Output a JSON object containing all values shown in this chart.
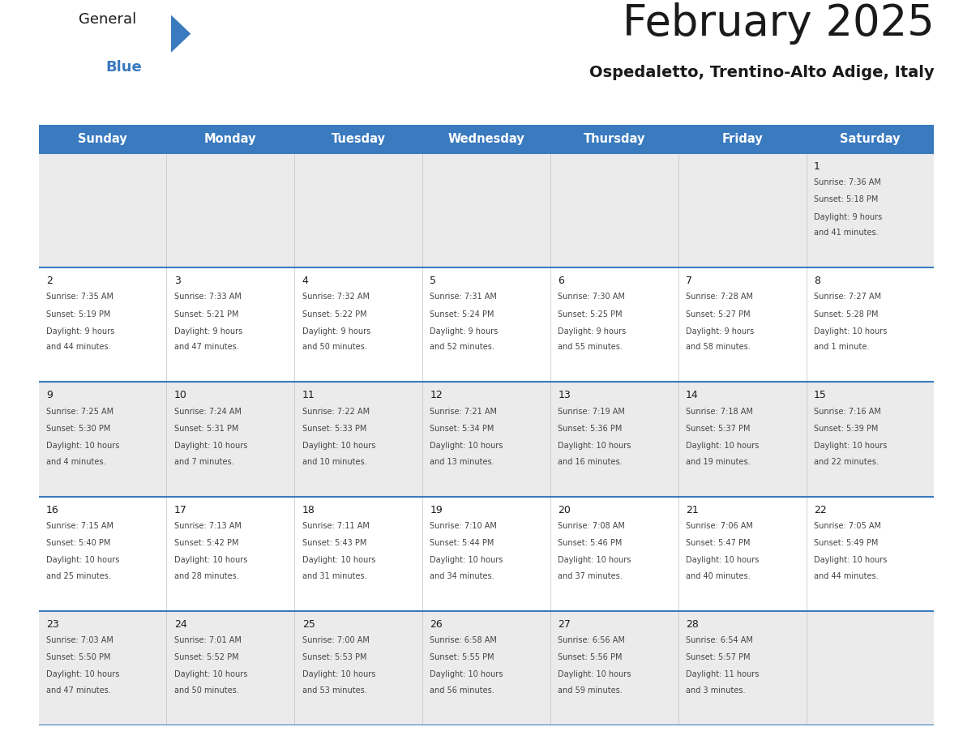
{
  "title": "February 2025",
  "subtitle": "Ospedaletto, Trentino-Alto Adige, Italy",
  "header_color": "#3a7abf",
  "header_text_color": "#ffffff",
  "row_bg_even": "#ebebeb",
  "row_bg_odd": "#ffffff",
  "day_headers": [
    "Sunday",
    "Monday",
    "Tuesday",
    "Wednesday",
    "Thursday",
    "Friday",
    "Saturday"
  ],
  "title_color": "#1a1a1a",
  "subtitle_color": "#1a1a1a",
  "number_color": "#1a1a1a",
  "text_color": "#444444",
  "line_color": "#3a7abf",
  "days": [
    {
      "day": 1,
      "col": 6,
      "row": 0,
      "sunrise": "7:36 AM",
      "sunset": "5:18 PM",
      "daylight_hours": 9,
      "daylight_minutes": 41
    },
    {
      "day": 2,
      "col": 0,
      "row": 1,
      "sunrise": "7:35 AM",
      "sunset": "5:19 PM",
      "daylight_hours": 9,
      "daylight_minutes": 44
    },
    {
      "day": 3,
      "col": 1,
      "row": 1,
      "sunrise": "7:33 AM",
      "sunset": "5:21 PM",
      "daylight_hours": 9,
      "daylight_minutes": 47
    },
    {
      "day": 4,
      "col": 2,
      "row": 1,
      "sunrise": "7:32 AM",
      "sunset": "5:22 PM",
      "daylight_hours": 9,
      "daylight_minutes": 50
    },
    {
      "day": 5,
      "col": 3,
      "row": 1,
      "sunrise": "7:31 AM",
      "sunset": "5:24 PM",
      "daylight_hours": 9,
      "daylight_minutes": 52
    },
    {
      "day": 6,
      "col": 4,
      "row": 1,
      "sunrise": "7:30 AM",
      "sunset": "5:25 PM",
      "daylight_hours": 9,
      "daylight_minutes": 55
    },
    {
      "day": 7,
      "col": 5,
      "row": 1,
      "sunrise": "7:28 AM",
      "sunset": "5:27 PM",
      "daylight_hours": 9,
      "daylight_minutes": 58
    },
    {
      "day": 8,
      "col": 6,
      "row": 1,
      "sunrise": "7:27 AM",
      "sunset": "5:28 PM",
      "daylight_hours": 10,
      "daylight_minutes": 1
    },
    {
      "day": 9,
      "col": 0,
      "row": 2,
      "sunrise": "7:25 AM",
      "sunset": "5:30 PM",
      "daylight_hours": 10,
      "daylight_minutes": 4
    },
    {
      "day": 10,
      "col": 1,
      "row": 2,
      "sunrise": "7:24 AM",
      "sunset": "5:31 PM",
      "daylight_hours": 10,
      "daylight_minutes": 7
    },
    {
      "day": 11,
      "col": 2,
      "row": 2,
      "sunrise": "7:22 AM",
      "sunset": "5:33 PM",
      "daylight_hours": 10,
      "daylight_minutes": 10
    },
    {
      "day": 12,
      "col": 3,
      "row": 2,
      "sunrise": "7:21 AM",
      "sunset": "5:34 PM",
      "daylight_hours": 10,
      "daylight_minutes": 13
    },
    {
      "day": 13,
      "col": 4,
      "row": 2,
      "sunrise": "7:19 AM",
      "sunset": "5:36 PM",
      "daylight_hours": 10,
      "daylight_minutes": 16
    },
    {
      "day": 14,
      "col": 5,
      "row": 2,
      "sunrise": "7:18 AM",
      "sunset": "5:37 PM",
      "daylight_hours": 10,
      "daylight_minutes": 19
    },
    {
      "day": 15,
      "col": 6,
      "row": 2,
      "sunrise": "7:16 AM",
      "sunset": "5:39 PM",
      "daylight_hours": 10,
      "daylight_minutes": 22
    },
    {
      "day": 16,
      "col": 0,
      "row": 3,
      "sunrise": "7:15 AM",
      "sunset": "5:40 PM",
      "daylight_hours": 10,
      "daylight_minutes": 25
    },
    {
      "day": 17,
      "col": 1,
      "row": 3,
      "sunrise": "7:13 AM",
      "sunset": "5:42 PM",
      "daylight_hours": 10,
      "daylight_minutes": 28
    },
    {
      "day": 18,
      "col": 2,
      "row": 3,
      "sunrise": "7:11 AM",
      "sunset": "5:43 PM",
      "daylight_hours": 10,
      "daylight_minutes": 31
    },
    {
      "day": 19,
      "col": 3,
      "row": 3,
      "sunrise": "7:10 AM",
      "sunset": "5:44 PM",
      "daylight_hours": 10,
      "daylight_minutes": 34
    },
    {
      "day": 20,
      "col": 4,
      "row": 3,
      "sunrise": "7:08 AM",
      "sunset": "5:46 PM",
      "daylight_hours": 10,
      "daylight_minutes": 37
    },
    {
      "day": 21,
      "col": 5,
      "row": 3,
      "sunrise": "7:06 AM",
      "sunset": "5:47 PM",
      "daylight_hours": 10,
      "daylight_minutes": 40
    },
    {
      "day": 22,
      "col": 6,
      "row": 3,
      "sunrise": "7:05 AM",
      "sunset": "5:49 PM",
      "daylight_hours": 10,
      "daylight_minutes": 44
    },
    {
      "day": 23,
      "col": 0,
      "row": 4,
      "sunrise": "7:03 AM",
      "sunset": "5:50 PM",
      "daylight_hours": 10,
      "daylight_minutes": 47
    },
    {
      "day": 24,
      "col": 1,
      "row": 4,
      "sunrise": "7:01 AM",
      "sunset": "5:52 PM",
      "daylight_hours": 10,
      "daylight_minutes": 50
    },
    {
      "day": 25,
      "col": 2,
      "row": 4,
      "sunrise": "7:00 AM",
      "sunset": "5:53 PM",
      "daylight_hours": 10,
      "daylight_minutes": 53
    },
    {
      "day": 26,
      "col": 3,
      "row": 4,
      "sunrise": "6:58 AM",
      "sunset": "5:55 PM",
      "daylight_hours": 10,
      "daylight_minutes": 56
    },
    {
      "day": 27,
      "col": 4,
      "row": 4,
      "sunrise": "6:56 AM",
      "sunset": "5:56 PM",
      "daylight_hours": 10,
      "daylight_minutes": 59
    },
    {
      "day": 28,
      "col": 5,
      "row": 4,
      "sunrise": "6:54 AM",
      "sunset": "5:57 PM",
      "daylight_hours": 11,
      "daylight_minutes": 3
    }
  ],
  "num_rows": 5,
  "logo_text_general": "General",
  "logo_text_blue": "Blue",
  "logo_color_general": "#1a1a1a",
  "logo_color_blue": "#3a7abf",
  "logo_triangle_color": "#3a7abf"
}
